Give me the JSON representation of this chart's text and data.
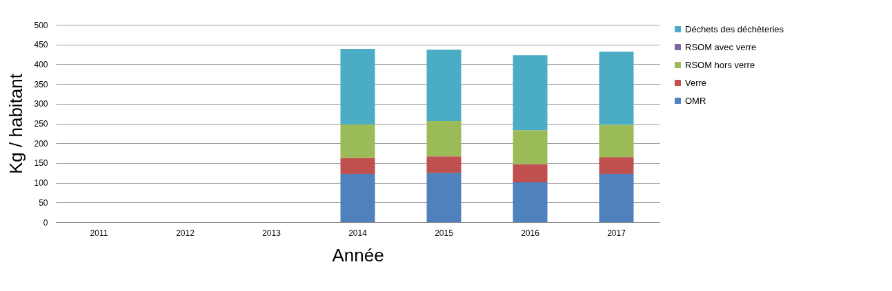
{
  "chart_data": {
    "type": "bar",
    "stacked": true,
    "xlabel": "Année",
    "ylabel": "Kg / habitant",
    "categories": [
      "2011",
      "2012",
      "2013",
      "2014",
      "2015",
      "2016",
      "2017"
    ],
    "series": [
      {
        "name": "OMR",
        "color": "#4f81bd",
        "values": [
          null,
          null,
          null,
          122,
          125,
          101,
          122
        ]
      },
      {
        "name": "Verre",
        "color": "#c0504d",
        "values": [
          null,
          null,
          null,
          41,
          42,
          46,
          43
        ]
      },
      {
        "name": "RSOM hors verre",
        "color": "#9bbb59",
        "values": [
          null,
          null,
          null,
          85,
          89,
          86,
          82
        ]
      },
      {
        "name": "RSOM avec verre",
        "color": "#8064a2",
        "values": [
          null,
          null,
          null,
          null,
          null,
          null,
          null
        ]
      },
      {
        "name": "Déchets des déchèteries",
        "color": "#4bacc6",
        "values": [
          null,
          null,
          null,
          191,
          181,
          190,
          185
        ]
      }
    ],
    "ylim": [
      0,
      500
    ],
    "yticks": [
      0,
      50,
      100,
      150,
      200,
      250,
      300,
      350,
      400,
      450,
      500
    ],
    "grid": "y",
    "legend": "right"
  }
}
